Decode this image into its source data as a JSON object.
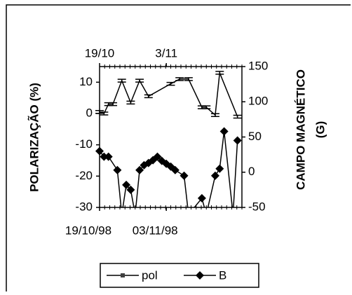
{
  "chart_data": {
    "type": "line",
    "ylabel": "POLARIZAÇÃO (%)",
    "y2label": [
      "CAMPO MAGNÉTICO",
      "(G)"
    ],
    "xlim": [
      0,
      32
    ],
    "xticks": [
      {
        "value": 0,
        "label": "19/10/98"
      },
      {
        "value": 15,
        "label": "03/11/98"
      }
    ],
    "x2ticks": [
      {
        "value": 0,
        "label": "19/10"
      },
      {
        "value": 15,
        "label": "3/11"
      }
    ],
    "ylim": [
      -30,
      15
    ],
    "yticks": [
      -30,
      -20,
      -10,
      0,
      10
    ],
    "y2lim": [
      -50,
      150
    ],
    "y2ticks": [
      -50,
      0,
      50,
      100,
      150
    ],
    "series": [
      {
        "name": "pol",
        "color": "#000000",
        "marker": "dash",
        "x": [
          0,
          1,
          2,
          3,
          5,
          7,
          9,
          11,
          16,
          18,
          20,
          23,
          24,
          26,
          27,
          31
        ],
        "values": [
          0.5,
          0,
          3,
          3,
          10.5,
          3.5,
          10.5,
          5.5,
          9.5,
          11,
          11,
          2,
          2,
          -0.5,
          13,
          -1
        ]
      },
      {
        "name": "B",
        "color": "#000000",
        "marker": "diamond",
        "axis": "y2",
        "x": [
          0,
          1,
          2,
          4,
          5,
          6,
          7,
          8,
          9,
          10,
          11,
          12,
          13,
          14,
          15,
          16,
          17,
          19,
          20,
          23,
          24,
          26,
          27,
          28,
          30,
          31
        ],
        "values": [
          30,
          22,
          22,
          3,
          -60,
          -18,
          -25,
          -60,
          3,
          10,
          13,
          17,
          22,
          16,
          12,
          8,
          3,
          -5,
          -60,
          -37,
          -60,
          -5,
          5,
          58,
          -60,
          45
        ]
      }
    ],
    "legend": "bottom"
  }
}
